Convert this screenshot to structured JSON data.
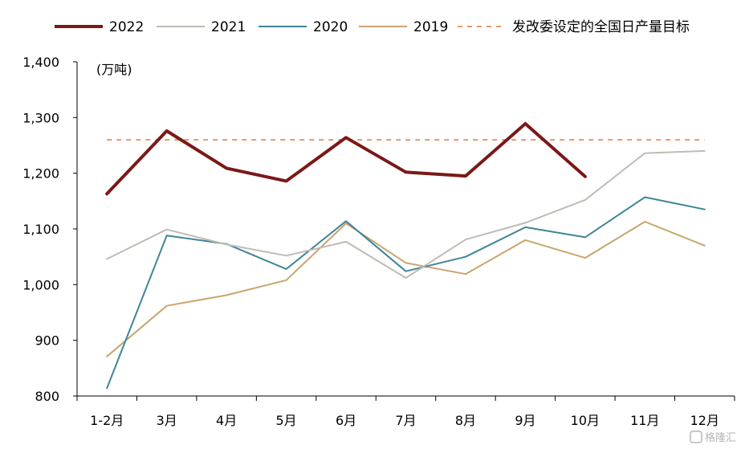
{
  "chart_data": {
    "type": "line",
    "unit_label": "(万吨)",
    "categories": [
      "1-2月",
      "3月",
      "4月",
      "5月",
      "6月",
      "7月",
      "8月",
      "9月",
      "10月",
      "11月",
      "12月"
    ],
    "ylim": [
      800,
      1400
    ],
    "yticks": [
      "800",
      "900",
      "1,000",
      "1,100",
      "1,200",
      "1,300",
      "1,400"
    ],
    "ytick_values": [
      800,
      900,
      1000,
      1100,
      1200,
      1300,
      1400
    ],
    "grid": false,
    "legend_position": "top",
    "series": [
      {
        "name": "2022",
        "color": "#7b1818",
        "width": 4,
        "dash": "",
        "values": [
          1163,
          1276,
          1209,
          1186,
          1264,
          1202,
          1195,
          1289,
          1194,
          null,
          null
        ]
      },
      {
        "name": "2021",
        "color": "#bebcb4",
        "width": 2,
        "dash": "",
        "values": [
          1046,
          1099,
          1072,
          1052,
          1077,
          1012,
          1081,
          1111,
          1152,
          1236,
          1240
        ]
      },
      {
        "name": "2020",
        "color": "#3f8597",
        "width": 2,
        "dash": "",
        "values": [
          814,
          1088,
          1073,
          1028,
          1114,
          1024,
          1050,
          1103,
          1085,
          1157,
          1135
        ]
      },
      {
        "name": "2019",
        "color": "#c9a56d",
        "width": 2,
        "dash": "",
        "values": [
          871,
          962,
          981,
          1008,
          1110,
          1039,
          1019,
          1080,
          1048,
          1113,
          1070
        ]
      },
      {
        "name": "发改委设定的全国日产量目标",
        "color": "#e69a6a",
        "width": 2,
        "dash": "6,6",
        "values": [
          1260,
          1260,
          1260,
          1260,
          1260,
          1260,
          1260,
          1260,
          1260,
          1260,
          1260
        ]
      }
    ]
  },
  "watermark": "格隆汇"
}
